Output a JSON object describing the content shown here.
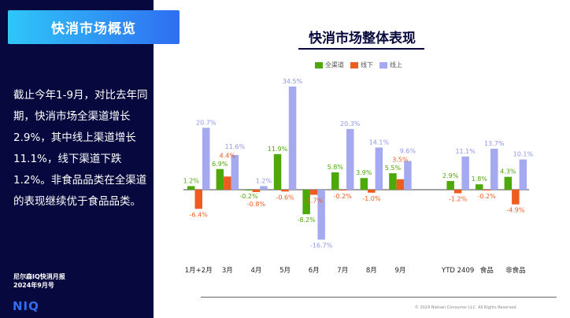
{
  "section_title": "快消市场概览",
  "summary": "截止今年1-9月，对比去年同期，快消市场全渠道增长2.9%，其中线上渠道增长11.1%，线下渠道下跌1.2%。非食品品类在全渠道的表现继续优于食品品类。",
  "report_name": "尼尔森IQ快消月报",
  "report_issue": "2024年9月号",
  "logo": "NIQ",
  "copyright": "© 2024 Nielsen Consumer LLC. All Rights Reserved.",
  "chart_data": {
    "type": "bar",
    "title": "快消市场整体表现",
    "legend_position": "top",
    "grid": false,
    "categories": [
      "1月+2月",
      "3月",
      "4月",
      "5月",
      "6月",
      "7月",
      "8月",
      "9月",
      "",
      "YTD 2409",
      "食品",
      "非食品"
    ],
    "series": [
      {
        "name": "全渠道",
        "color": "#4ea80a",
        "values": [
          1.2,
          6.9,
          -0.2,
          11.9,
          -8.2,
          5.8,
          3.9,
          5.5,
          null,
          2.9,
          1.8,
          4.3
        ]
      },
      {
        "name": "线下",
        "color": "#ee5d1f",
        "values": [
          -6.4,
          4.4,
          -0.8,
          -0.6,
          -1.7,
          -0.2,
          -1.0,
          3.5,
          null,
          -1.2,
          -0.2,
          -4.9
        ]
      },
      {
        "name": "线上",
        "color": "#a5aaf0",
        "values": [
          20.7,
          11.6,
          1.2,
          34.5,
          -16.7,
          20.3,
          14.1,
          9.6,
          null,
          11.1,
          13.7,
          10.1
        ]
      }
    ],
    "unit": "%"
  }
}
